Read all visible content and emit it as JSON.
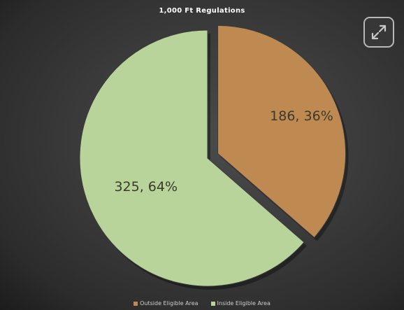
{
  "chart_data": {
    "type": "pie",
    "title": "1,000 Ft Regulations",
    "categories": [
      "Outside Eligible Area",
      "Inside Eligible Area"
    ],
    "values": [
      186,
      325
    ],
    "percents": [
      36,
      64
    ],
    "labels": [
      "186, 36%",
      "325, 64%"
    ],
    "colors": [
      "#bf8a52",
      "#b8d49b"
    ],
    "exploded": "Outside Eligible Area",
    "legend_position": "bottom"
  },
  "legend": {
    "items": [
      {
        "label": "Outside Eligible Area",
        "color": "#bf8a52"
      },
      {
        "label": "Inside Eligible Area",
        "color": "#b8d49b"
      }
    ]
  },
  "controls": {
    "expand_icon": "expand-icon"
  }
}
